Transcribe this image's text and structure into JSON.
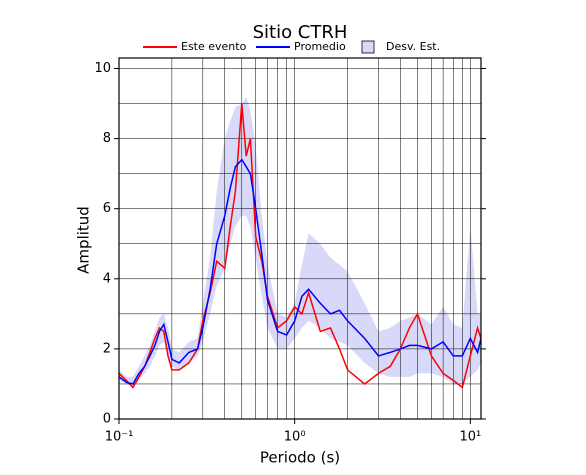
{
  "chart_data": {
    "type": "line",
    "title": "Sitio CTRH",
    "x_label": "Periodo (s)",
    "y_label": "Amplitud",
    "log_x": true,
    "x": [
      0.1,
      0.11,
      0.12,
      0.13,
      0.14,
      0.15,
      0.16,
      0.17,
      0.18,
      0.19,
      0.2,
      0.22,
      0.25,
      0.28,
      0.3,
      0.33,
      0.36,
      0.4,
      0.43,
      0.46,
      0.5,
      0.53,
      0.56,
      0.6,
      0.65,
      0.7,
      0.8,
      0.9,
      1.0,
      1.1,
      1.2,
      1.4,
      1.6,
      1.8,
      2.0,
      2.5,
      3.0,
      3.5,
      4.0,
      4.5,
      5.0,
      6.0,
      7.0,
      8.0,
      9.0,
      10,
      11,
      11.5
    ],
    "band": {
      "name": "Desv. Est.",
      "color": "#d8d8f8",
      "lower": [
        1.1,
        1.0,
        0.9,
        1.1,
        1.3,
        1.5,
        1.8,
        2.1,
        2.2,
        1.8,
        1.5,
        1.4,
        1.6,
        1.8,
        2.2,
        3.0,
        3.8,
        4.3,
        5.0,
        5.5,
        5.8,
        5.8,
        5.5,
        4.6,
        3.5,
        2.6,
        2.0,
        2.0,
        2.3,
        2.6,
        2.8,
        2.6,
        2.3,
        2.2,
        2.1,
        1.6,
        1.3,
        1.2,
        1.2,
        1.2,
        1.3,
        1.3,
        1.2,
        1.0,
        1.0,
        1.2,
        1.4,
        1.6
      ],
      "upper": [
        1.4,
        1.2,
        1.2,
        1.5,
        1.8,
        2.1,
        2.5,
        2.9,
        3.0,
        2.6,
        2.0,
        1.9,
        2.2,
        2.3,
        3.3,
        4.6,
        6.5,
        8.0,
        8.5,
        8.9,
        9.0,
        9.2,
        8.8,
        7.8,
        5.8,
        4.4,
        3.0,
        2.9,
        3.3,
        4.4,
        5.3,
        5.0,
        4.6,
        4.4,
        4.2,
        3.3,
        2.5,
        2.6,
        2.8,
        2.9,
        3.0,
        2.7,
        3.2,
        2.7,
        2.6,
        5.5,
        3.0,
        3.0
      ]
    },
    "series": [
      {
        "name": "Este evento",
        "color": "#ff0000",
        "values": [
          1.3,
          1.1,
          0.9,
          1.2,
          1.5,
          1.9,
          2.3,
          2.6,
          2.5,
          1.8,
          1.4,
          1.4,
          1.6,
          2.0,
          2.8,
          3.6,
          4.5,
          4.3,
          5.5,
          6.5,
          9.0,
          7.5,
          8.0,
          5.2,
          4.5,
          3.5,
          2.6,
          2.8,
          3.2,
          3.0,
          3.6,
          2.5,
          2.6,
          2.0,
          1.4,
          1.0,
          1.3,
          1.5,
          2.0,
          2.6,
          3.0,
          1.8,
          1.3,
          1.1,
          0.9,
          1.8,
          2.6,
          2.3
        ]
      },
      {
        "name": "Promedio",
        "color": "#0000ff",
        "values": [
          1.2,
          1.05,
          1.0,
          1.3,
          1.5,
          1.8,
          2.1,
          2.5,
          2.7,
          2.2,
          1.7,
          1.6,
          1.9,
          2.0,
          2.6,
          3.7,
          5.0,
          5.8,
          6.6,
          7.2,
          7.4,
          7.2,
          7.0,
          6.0,
          4.7,
          3.4,
          2.5,
          2.4,
          2.8,
          3.5,
          3.7,
          3.3,
          3.0,
          3.1,
          2.8,
          2.3,
          1.8,
          1.9,
          2.0,
          2.1,
          2.1,
          2.0,
          2.2,
          1.8,
          1.8,
          2.3,
          1.9,
          2.3
        ]
      }
    ],
    "xlim": [
      0.1,
      11.5
    ],
    "xticks": [
      {
        "value": 0.1,
        "label": "10⁻¹"
      },
      {
        "value": 1,
        "label": "10⁰"
      },
      {
        "value": 10,
        "label": "10¹"
      }
    ],
    "xgrid": [
      0.2,
      0.3,
      0.4,
      0.5,
      0.6,
      0.7,
      0.8,
      0.9,
      1,
      2,
      3,
      4,
      5,
      6,
      7,
      8,
      9,
      10
    ],
    "ylim": [
      0,
      10.3
    ],
    "yticks": [
      0,
      2,
      4,
      6,
      8,
      10
    ],
    "ygrid": [
      1,
      2,
      3,
      4,
      5,
      6,
      7,
      8,
      9,
      10
    ]
  }
}
